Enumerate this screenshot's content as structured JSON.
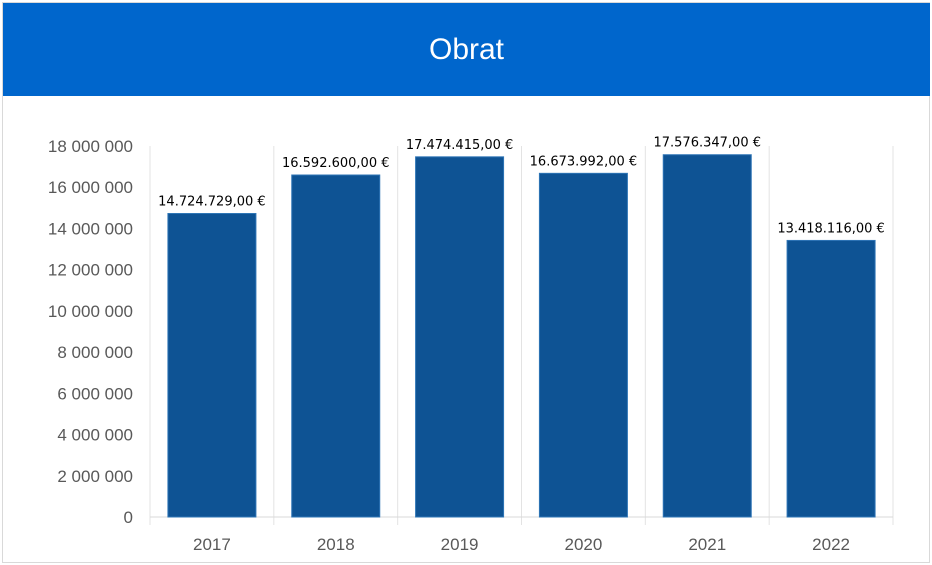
{
  "header": {
    "title": "Obrat"
  },
  "colors": {
    "header_bg": "#0066cc",
    "bar": "#0e5394",
    "bar_edge": "#2e75b6"
  },
  "chart_data": {
    "type": "bar",
    "title": "Obrat",
    "xlabel": "",
    "ylabel": "",
    "categories": [
      "2017",
      "2018",
      "2019",
      "2020",
      "2021",
      "2022"
    ],
    "values": [
      14724729,
      16592600,
      17474415,
      16673992,
      17576347,
      13418116
    ],
    "data_labels": [
      "14.724.729,00 €",
      "16.592.600,00 €",
      "17.474.415,00 €",
      "16.673.992,00 €",
      "17.576.347,00 €",
      "13.418.116,00 €"
    ],
    "ylim": [
      0,
      18000000
    ],
    "yticks": [
      0,
      2000000,
      4000000,
      6000000,
      8000000,
      10000000,
      12000000,
      14000000,
      16000000,
      18000000
    ],
    "ytick_labels": [
      "0",
      "2 000 000",
      "4 000 000",
      "6 000 000",
      "8 000 000",
      "10 000 000",
      "12 000 000",
      "14 000 000",
      "16 000 000",
      "18 000 000"
    ],
    "grid": "vertical category separators",
    "legend": "none"
  }
}
